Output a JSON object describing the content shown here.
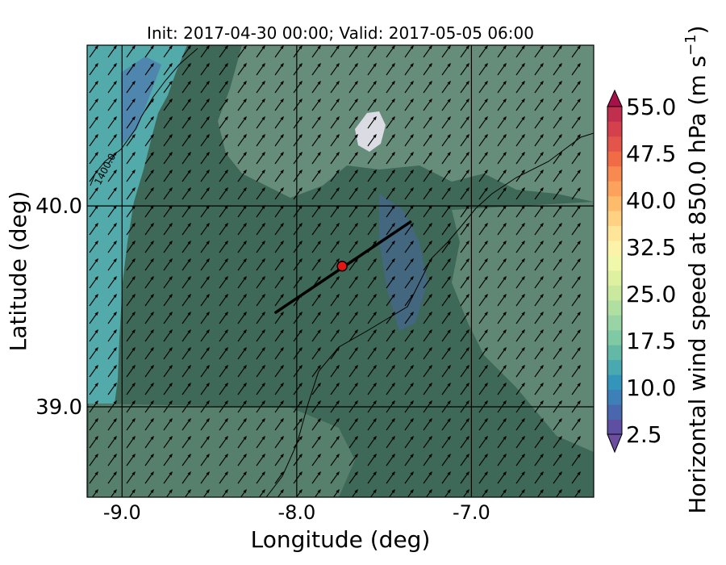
{
  "title": "Init: 2017-04-30 00:00; Valid: 2017-05-05 06:00",
  "x_axis": {
    "label": "Longitude (deg)",
    "ticks": [
      {
        "value": -9.0,
        "label": "-9.0"
      },
      {
        "value": -8.0,
        "label": "-8.0"
      },
      {
        "value": -7.0,
        "label": "-7.0"
      }
    ],
    "range": [
      -9.2,
      -6.3
    ]
  },
  "y_axis": {
    "label": "Latitude (deg)",
    "ticks": [
      {
        "value": 40.0,
        "label": "40.0"
      },
      {
        "value": 39.0,
        "label": "39.0"
      }
    ],
    "range": [
      38.55,
      40.8
    ]
  },
  "colorbar": {
    "label": "Horizontal wind speed at 850.0 hPa (m s",
    "label_superscript": "−1",
    "label_suffix": ")",
    "min": 2.5,
    "max": 55.0,
    "step": 2.5,
    "extend": "both",
    "tick_labels": [
      "2.5",
      "10.0",
      "17.5",
      "25.0",
      "32.5",
      "40.0",
      "47.5",
      "55.0"
    ],
    "colors": [
      "#5e4fa2",
      "#4a67ae",
      "#3d80b8",
      "#3495ba",
      "#4aa8b0",
      "#63b9a5",
      "#7fc9a4",
      "#99d5a4",
      "#b0dfa2",
      "#c8e99e",
      "#ddf1a0",
      "#f0f8aa",
      "#fdf3a8",
      "#fee597",
      "#fed282",
      "#fdbc6b",
      "#fca25d",
      "#f88a51",
      "#f06c47",
      "#e3554a",
      "#d5404d",
      "#c0304e"
    ],
    "under_color": "#6b4ea0",
    "over_color": "#a8104a"
  },
  "contour_label": "1400.0",
  "wind_barbs": {
    "direction": "southwest",
    "field_color": "#000000"
  },
  "cross_section": {
    "start": {
      "lon": -8.12,
      "lat": 39.47
    },
    "end": {
      "lon": -7.35,
      "lat": 39.92
    },
    "point": {
      "lon": -7.74,
      "lat": 39.7
    },
    "point_color": "#e81414"
  },
  "map_colors": {
    "ocean": "#52aaaa",
    "land": "#3e6858",
    "highland": "#6d9480"
  }
}
